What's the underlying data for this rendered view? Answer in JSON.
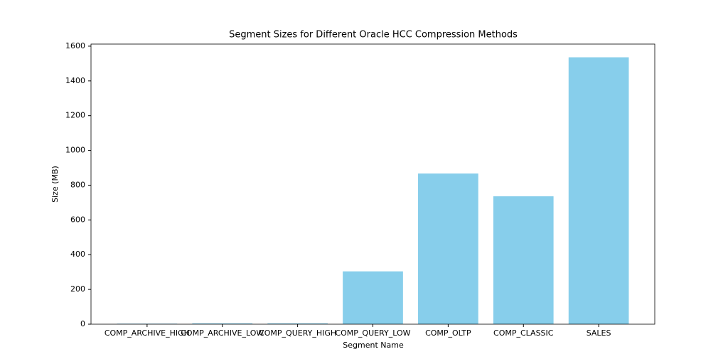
{
  "chart_data": {
    "type": "bar",
    "title": "Segment Sizes for Different Oracle HCC Compression Methods",
    "x_label": "Segment Name",
    "y_label": "Size (MB)",
    "categories": [
      "COMP_ARCHIVE_HIGH",
      "COMP_ARCHIVE_LOW",
      "COMP_QUERY_HIGH",
      "COMP_QUERY_LOW",
      "COMP_OLTP",
      "COMP_CLASSIC",
      "SALES"
    ],
    "values": [
      3,
      5,
      5,
      304,
      867,
      736,
      1536
    ],
    "color": "#87ceeb",
    "ylim": [
      0,
      1612
    ],
    "yticks": [
      0,
      200,
      400,
      600,
      800,
      1000,
      1200,
      1400,
      1600
    ],
    "grid": false
  }
}
